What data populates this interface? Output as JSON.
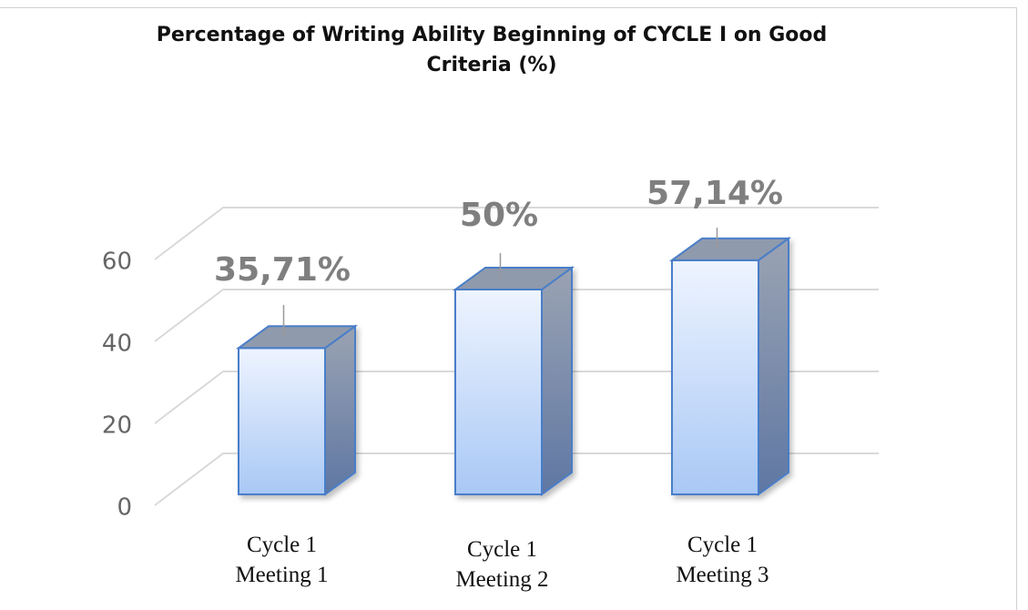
{
  "chart_data": {
    "type": "bar3d",
    "title": "Percentage of Writing Ability Beginning of CYCLE I on Good Criteria (%)",
    "categories": [
      "Cycle 1 Meeting 1",
      "Cycle 1 Meeting 2",
      "Cycle 1 Meeting 3"
    ],
    "values": [
      35.71,
      50,
      57.14
    ],
    "value_labels": [
      "35,71%",
      "50%",
      "57,14%"
    ],
    "color": "#a9c8f5",
    "ylim": [
      0,
      60
    ],
    "yticks": [
      0,
      20,
      40,
      60
    ],
    "grid": true
  }
}
